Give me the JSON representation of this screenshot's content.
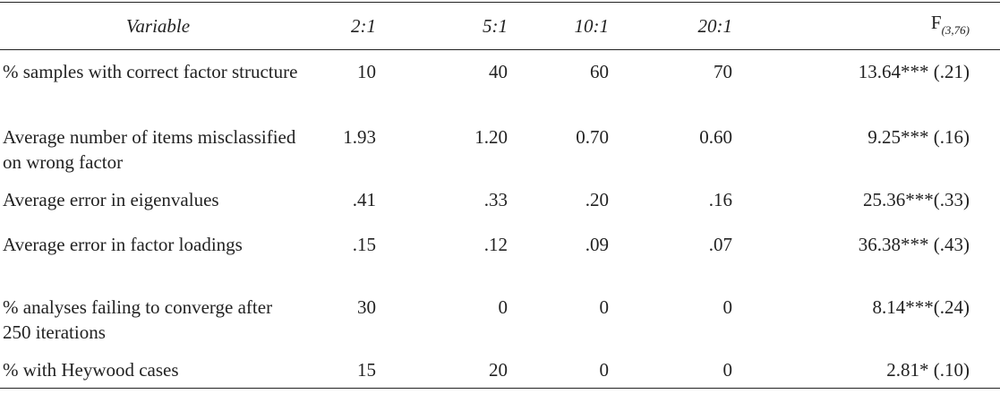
{
  "table": {
    "header": [
      "Variable",
      "2:1",
      "5:1",
      "10:1",
      "20:1",
      {
        "text": "F",
        "subscript": "(3,76)"
      }
    ],
    "rows": [
      [
        "% samples with correct factor structure",
        "10",
        "40",
        "60",
        "70",
        "13.64*** (.21)"
      ],
      [
        "Average number of items misclassified on wrong factor",
        "1.93",
        "1.20",
        "0.70",
        "0.60",
        "9.25*** (.16)"
      ],
      [
        "Average error in eigenvalues",
        ".41",
        ".33",
        ".20",
        ".16",
        "25.36***(.33)"
      ],
      [
        "Average error in factor loadings",
        ".15",
        ".12",
        ".09",
        ".07",
        "36.38*** (.43)"
      ],
      [
        "% analyses failing to converge after 250 iterations",
        "30",
        "0",
        "0",
        "0",
        "8.14***(.24)"
      ],
      [
        "% with Heywood cases",
        "15",
        "20",
        "0",
        "0",
        "2.81* (.10)"
      ]
    ]
  }
}
